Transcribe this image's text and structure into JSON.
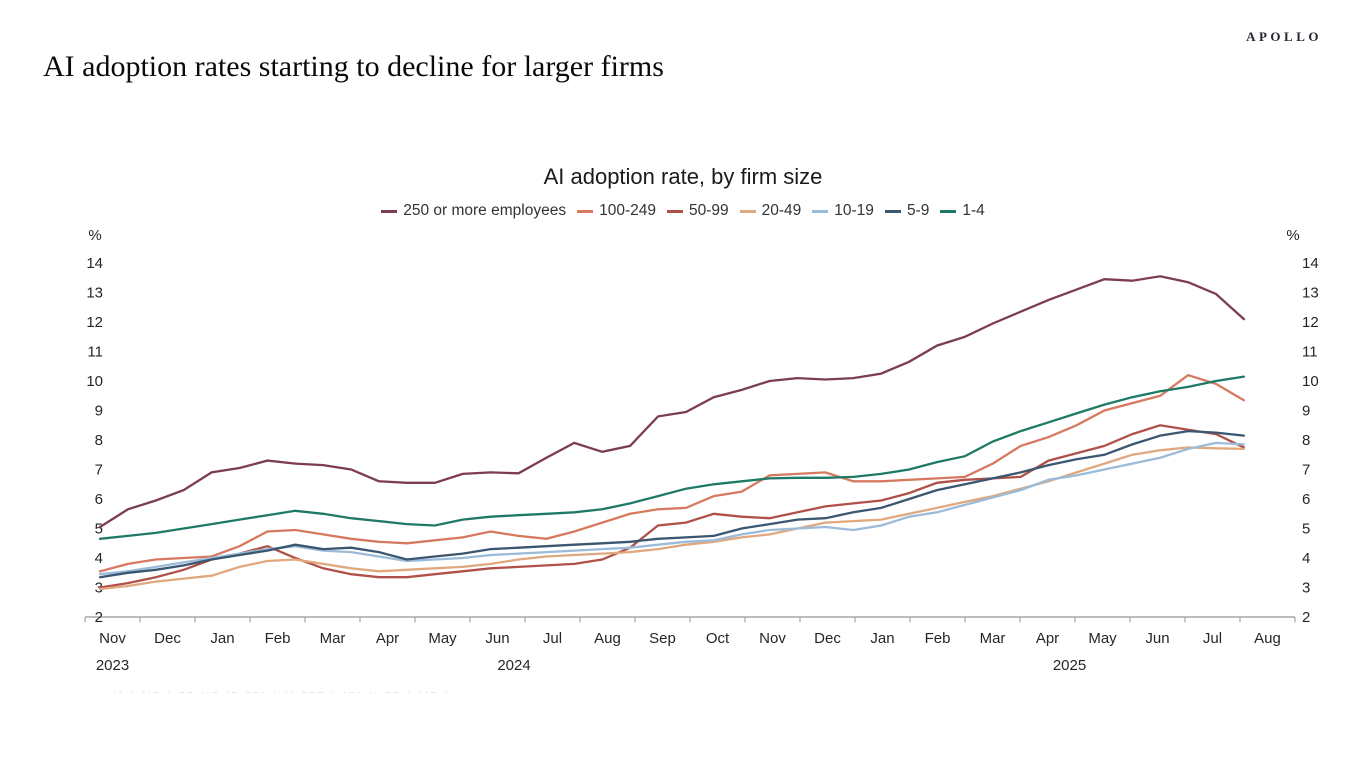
{
  "brand": "APOLLO",
  "page_title": "AI adoption rates starting to decline for larger firms",
  "footnote_fragments": "·· · ··– · –– ··– ·– ––· · ·· ––– · ·–· ·· –– · ··– ·",
  "chart_data": {
    "type": "line",
    "title": "AI adoption rate, by firm size",
    "ylabel_unit": "%",
    "ylim": [
      2,
      14
    ],
    "y_tick_step": 1,
    "grid": false,
    "legend_position": "top",
    "x_month_labels": [
      "Nov",
      "Dec",
      "Jan",
      "Feb",
      "Mar",
      "Apr",
      "May",
      "Jun",
      "Jul",
      "Aug",
      "Sep",
      "Oct",
      "Nov",
      "Dec",
      "Jan",
      "Feb",
      "Mar",
      "Apr",
      "May",
      "Jun",
      "Jul",
      "Aug"
    ],
    "x_year_labels": [
      {
        "label": "2023",
        "center_month_index": 0.5
      },
      {
        "label": "2024",
        "center_month_index": 7.8
      },
      {
        "label": "2025",
        "center_month_index": 17.9
      }
    ],
    "x_unit": "months since Nov 2023, bi-weekly survey points",
    "x": [
      0,
      0.5,
      1,
      1.5,
      2,
      2.5,
      3,
      3.5,
      4,
      4.5,
      5,
      5.5,
      6,
      6.5,
      7,
      7.5,
      8,
      8.5,
      9,
      9.5,
      10,
      10.5,
      11,
      11.5,
      12,
      12.5,
      13,
      13.5,
      14,
      14.5,
      15,
      15.5,
      16,
      16.5,
      17,
      17.5,
      18,
      18.5,
      19,
      19.5,
      20,
      20.5
    ],
    "series": [
      {
        "name": "250 or more employees",
        "color": "#7C3D52",
        "values": [
          5.05,
          5.65,
          5.95,
          6.3,
          6.9,
          7.05,
          7.3,
          7.2,
          7.15,
          7.0,
          6.6,
          6.55,
          6.55,
          6.85,
          6.9,
          6.87,
          7.4,
          7.9,
          7.6,
          7.8,
          8.8,
          8.95,
          9.45,
          9.7,
          10.0,
          10.1,
          10.05,
          10.1,
          10.25,
          10.65,
          11.2,
          11.5,
          11.95,
          12.35,
          12.75,
          13.1,
          13.45,
          13.4,
          13.55,
          13.35,
          12.95,
          12.1
        ]
      },
      {
        "name": "100-249",
        "color": "#D7795F",
        "values": [
          3.55,
          3.8,
          3.95,
          4.0,
          4.05,
          4.4,
          4.9,
          4.95,
          4.8,
          4.65,
          4.55,
          4.5,
          4.6,
          4.7,
          4.9,
          4.75,
          4.65,
          4.9,
          5.2,
          5.5,
          5.65,
          5.7,
          6.1,
          6.25,
          6.8,
          6.85,
          6.9,
          6.6,
          6.6,
          6.65,
          6.7,
          6.75,
          7.2,
          7.8,
          8.1,
          8.5,
          9.0,
          9.25,
          9.5,
          10.2,
          9.9,
          9.35
        ]
      },
      {
        "name": "50-99",
        "color": "#B05149",
        "values": [
          3.0,
          3.15,
          3.35,
          3.6,
          3.95,
          4.15,
          4.4,
          4.0,
          3.65,
          3.45,
          3.35,
          3.35,
          3.45,
          3.55,
          3.65,
          3.7,
          3.75,
          3.8,
          3.95,
          4.35,
          5.1,
          5.2,
          5.5,
          5.4,
          5.35,
          5.55,
          5.75,
          5.85,
          5.95,
          6.2,
          6.55,
          6.65,
          6.7,
          6.75,
          7.3,
          7.55,
          7.8,
          8.2,
          8.5,
          8.35,
          8.2,
          7.75
        ]
      },
      {
        "name": "20-49",
        "color": "#E0A87E",
        "values": [
          2.95,
          3.05,
          3.2,
          3.3,
          3.4,
          3.7,
          3.9,
          3.95,
          3.8,
          3.65,
          3.55,
          3.6,
          3.65,
          3.7,
          3.8,
          3.95,
          4.05,
          4.1,
          4.15,
          4.2,
          4.3,
          4.45,
          4.55,
          4.7,
          4.8,
          5.0,
          5.2,
          5.25,
          5.3,
          5.5,
          5.7,
          5.9,
          6.1,
          6.35,
          6.6,
          6.9,
          7.2,
          7.5,
          7.65,
          7.75,
          7.72,
          7.7
        ]
      },
      {
        "name": "10-19",
        "color": "#9BBBD9",
        "values": [
          3.45,
          3.55,
          3.7,
          3.85,
          4.0,
          4.15,
          4.3,
          4.4,
          4.25,
          4.2,
          4.05,
          3.9,
          3.95,
          4.0,
          4.1,
          4.15,
          4.2,
          4.25,
          4.3,
          4.35,
          4.45,
          4.55,
          4.6,
          4.8,
          4.95,
          5.0,
          5.05,
          4.95,
          5.1,
          5.4,
          5.55,
          5.8,
          6.05,
          6.3,
          6.65,
          6.8,
          7.0,
          7.2,
          7.4,
          7.7,
          7.9,
          7.85
        ]
      },
      {
        "name": "5-9",
        "color": "#3A5670",
        "values": [
          3.35,
          3.5,
          3.6,
          3.75,
          3.95,
          4.1,
          4.25,
          4.45,
          4.3,
          4.35,
          4.2,
          3.95,
          4.05,
          4.15,
          4.3,
          4.35,
          4.4,
          4.45,
          4.5,
          4.55,
          4.65,
          4.7,
          4.75,
          5.0,
          5.15,
          5.3,
          5.35,
          5.55,
          5.7,
          6.0,
          6.3,
          6.5,
          6.7,
          6.9,
          7.15,
          7.35,
          7.5,
          7.85,
          8.15,
          8.3,
          8.25,
          8.15
        ]
      },
      {
        "name": "1-4",
        "color": "#1E7A64",
        "values": [
          4.65,
          4.75,
          4.85,
          5.0,
          5.15,
          5.3,
          5.45,
          5.6,
          5.5,
          5.35,
          5.25,
          5.15,
          5.1,
          5.3,
          5.4,
          5.45,
          5.5,
          5.55,
          5.65,
          5.85,
          6.1,
          6.35,
          6.5,
          6.6,
          6.7,
          6.72,
          6.72,
          6.75,
          6.85,
          7.0,
          7.25,
          7.45,
          7.95,
          8.3,
          8.6,
          8.9,
          9.2,
          9.45,
          9.65,
          9.8,
          10.0,
          10.15
        ]
      }
    ]
  }
}
